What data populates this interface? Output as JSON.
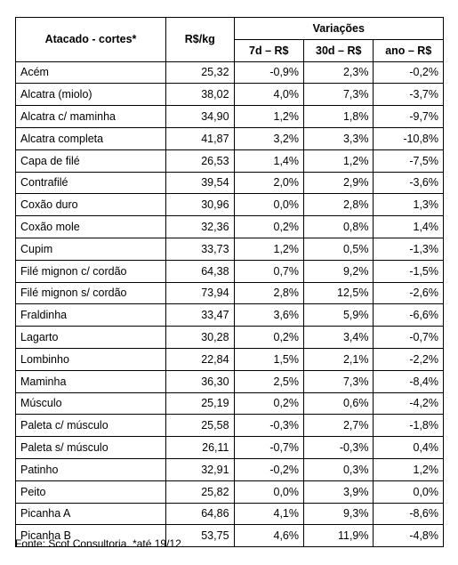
{
  "table": {
    "headers": {
      "name": "Atacado - cortes*",
      "price": "R$/kg",
      "group": "Variações",
      "var7d": "7d – R$",
      "var30d": "30d – R$",
      "var_ano": "ano – R$"
    },
    "rows": [
      {
        "name": "Acém",
        "price": "25,32",
        "v7": "-0,9%",
        "v30": "2,3%",
        "vano": "-0,2%"
      },
      {
        "name": "Alcatra (miolo)",
        "price": "38,02",
        "v7": "4,0%",
        "v30": "7,3%",
        "vano": "-3,7%"
      },
      {
        "name": "Alcatra c/ maminha",
        "price": "34,90",
        "v7": "1,2%",
        "v30": "1,8%",
        "vano": "-9,7%"
      },
      {
        "name": "Alcatra completa",
        "price": "41,87",
        "v7": "3,2%",
        "v30": "3,3%",
        "vano": "-10,8%"
      },
      {
        "name": "Capa de filé",
        "price": "26,53",
        "v7": "1,4%",
        "v30": "1,2%",
        "vano": "-7,5%"
      },
      {
        "name": "Contrafilé",
        "price": "39,54",
        "v7": "2,0%",
        "v30": "2,9%",
        "vano": "-3,6%"
      },
      {
        "name": "Coxão duro",
        "price": "30,96",
        "v7": "0,0%",
        "v30": "2,8%",
        "vano": "1,3%"
      },
      {
        "name": "Coxão mole",
        "price": "32,36",
        "v7": "0,2%",
        "v30": "0,8%",
        "vano": "1,4%"
      },
      {
        "name": "Cupim",
        "price": "33,73",
        "v7": "1,2%",
        "v30": "0,5%",
        "vano": "-1,3%"
      },
      {
        "name": "Filé mignon c/ cordão",
        "price": "64,38",
        "v7": "0,7%",
        "v30": "9,2%",
        "vano": "-1,5%"
      },
      {
        "name": "Filé mignon s/ cordão",
        "price": "73,94",
        "v7": "2,8%",
        "v30": "12,5%",
        "vano": "-2,6%"
      },
      {
        "name": "Fraldinha",
        "price": "33,47",
        "v7": "3,6%",
        "v30": "5,9%",
        "vano": "-6,6%"
      },
      {
        "name": "Lagarto",
        "price": "30,28",
        "v7": "0,2%",
        "v30": "3,4%",
        "vano": "-0,7%"
      },
      {
        "name": "Lombinho",
        "price": "22,84",
        "v7": "1,5%",
        "v30": "2,1%",
        "vano": "-2,2%"
      },
      {
        "name": "Maminha",
        "price": "36,30",
        "v7": "2,5%",
        "v30": "7,3%",
        "vano": "-8,4%"
      },
      {
        "name": "Músculo",
        "price": "25,19",
        "v7": "0,2%",
        "v30": "0,6%",
        "vano": "-4,2%"
      },
      {
        "name": "Paleta c/ músculo",
        "price": "25,58",
        "v7": "-0,3%",
        "v30": "2,7%",
        "vano": "-1,8%"
      },
      {
        "name": "Paleta s/ músculo",
        "price": "26,11",
        "v7": "-0,7%",
        "v30": "-0,3%",
        "vano": "0,4%"
      },
      {
        "name": "Patinho",
        "price": "32,91",
        "v7": "-0,2%",
        "v30": "0,3%",
        "vano": "1,2%"
      },
      {
        "name": "Peito",
        "price": "25,82",
        "v7": "0,0%",
        "v30": "3,9%",
        "vano": "0,0%"
      },
      {
        "name": "Picanha A",
        "price": "64,86",
        "v7": "4,1%",
        "v30": "9,3%",
        "vano": "-8,6%"
      },
      {
        "name": "Picanha B",
        "price": "53,75",
        "v7": "4,6%",
        "v30": "11,9%",
        "vano": "-4,8%"
      }
    ]
  },
  "footnote": "Fonte: Scot Consultoria. *até 19/12."
}
